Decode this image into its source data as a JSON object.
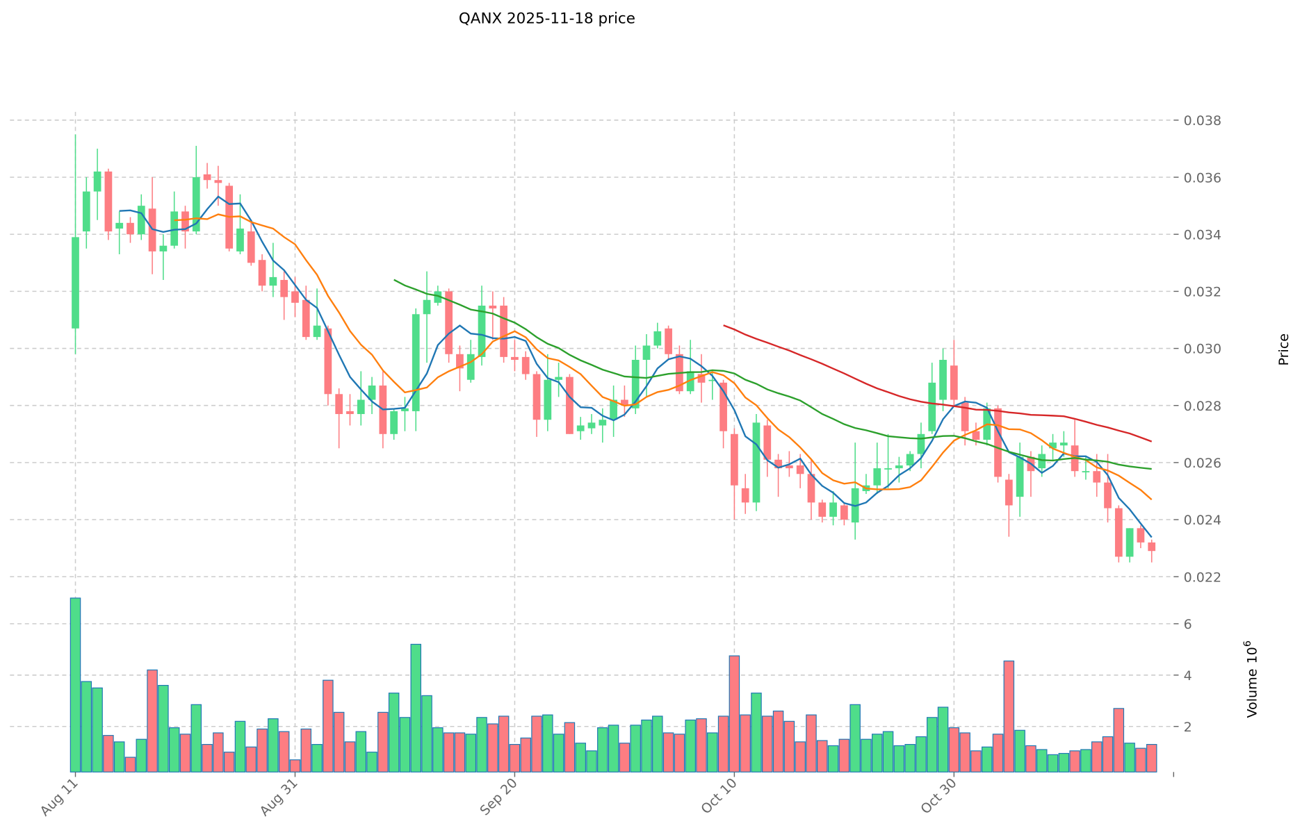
{
  "chart_data": {
    "type": "candlestick",
    "title": "QANX  2025-11-18  price",
    "ylabel": "Price",
    "volume_label": "Volume",
    "volume_exponent": "10",
    "volume_exponent_power": "6",
    "ylim": [
      0.0219,
      0.0383
    ],
    "volume_ylim": [
      0.23,
      6.9
    ],
    "price_ticks": [
      "0.022",
      "0.024",
      "0.026",
      "0.028",
      "0.030",
      "0.032",
      "0.034",
      "0.036",
      "0.038"
    ],
    "volume_ticks": [
      "2",
      "4",
      "6"
    ],
    "x_tick_labels": [
      {
        "index": 0,
        "label": "Aug 11"
      },
      {
        "index": 20,
        "label": "Aug 31"
      },
      {
        "index": 40,
        "label": "Sep 20"
      },
      {
        "index": 60,
        "label": "Oct 10"
      },
      {
        "index": 80,
        "label": "Oct 30"
      }
    ],
    "colors": {
      "up": "#4fdd8a",
      "down": "#fd7d82",
      "volume_edge": "#1f77b4"
    },
    "moving_averages": [
      {
        "window": 5,
        "color": "#1f77b4"
      },
      {
        "window": 10,
        "color": "#ff7f0e"
      },
      {
        "window": 30,
        "color": "#2ca02c"
      },
      {
        "window": 60,
        "color": "#d62728"
      }
    ],
    "candles": {
      "open": [
        0.0307,
        0.0341,
        0.0355,
        0.0362,
        0.0342,
        0.0344,
        0.034,
        0.0349,
        0.0334,
        0.0336,
        0.0348,
        0.0341,
        0.0361,
        0.0359,
        0.0357,
        0.0334,
        0.0341,
        0.0331,
        0.0322,
        0.0324,
        0.032,
        0.0317,
        0.0304,
        0.0307,
        0.0284,
        0.0278,
        0.0277,
        0.0282,
        0.0287,
        0.027,
        0.0278,
        0.0278,
        0.0312,
        0.0316,
        0.032,
        0.0298,
        0.0289,
        0.0297,
        0.0315,
        0.0315,
        0.0297,
        0.0297,
        0.0291,
        0.0275,
        0.0289,
        0.029,
        0.0271,
        0.0272,
        0.0273,
        0.0275,
        0.0282,
        0.0279,
        0.0296,
        0.0301,
        0.0307,
        0.0298,
        0.0285,
        0.0291,
        0.0289,
        0.0288,
        0.027,
        0.0251,
        0.0246,
        0.0273,
        0.0261,
        0.0259,
        0.0259,
        0.0256,
        0.0246,
        0.0241,
        0.0245,
        0.0239,
        0.025,
        0.0252,
        0.0258,
        0.0258,
        0.0259,
        0.0263,
        0.0271,
        0.0282,
        0.0294,
        0.0281,
        0.0271,
        0.0268,
        0.0279,
        0.0254,
        0.0248,
        0.0262,
        0.0258,
        0.0265,
        0.0266,
        0.0266,
        0.0257,
        0.0257,
        0.0253,
        0.0244,
        0.0227,
        0.0237,
        0.0232
      ],
      "high": [
        0.0375,
        0.036,
        0.037,
        0.0363,
        0.0348,
        0.0346,
        0.0354,
        0.036,
        0.034,
        0.0355,
        0.035,
        0.0371,
        0.0365,
        0.0364,
        0.0358,
        0.0354,
        0.0345,
        0.0333,
        0.0337,
        0.0327,
        0.0325,
        0.0322,
        0.0321,
        0.0308,
        0.0286,
        0.0284,
        0.0292,
        0.029,
        0.0292,
        0.0279,
        0.0283,
        0.0314,
        0.0327,
        0.0322,
        0.0321,
        0.0301,
        0.0303,
        0.0322,
        0.032,
        0.0318,
        0.0303,
        0.0299,
        0.0292,
        0.0298,
        0.0295,
        0.0291,
        0.0276,
        0.0277,
        0.0279,
        0.0287,
        0.0287,
        0.0301,
        0.0305,
        0.0309,
        0.0308,
        0.0301,
        0.0303,
        0.0298,
        0.0292,
        0.0289,
        0.0272,
        0.0256,
        0.0277,
        0.0275,
        0.0263,
        0.0264,
        0.0263,
        0.0261,
        0.0247,
        0.025,
        0.0246,
        0.0267,
        0.0256,
        0.0267,
        0.027,
        0.0262,
        0.0264,
        0.0274,
        0.0295,
        0.03,
        0.0303,
        0.0283,
        0.0274,
        0.0281,
        0.028,
        0.0256,
        0.0267,
        0.0264,
        0.0266,
        0.027,
        0.0271,
        0.0275,
        0.0262,
        0.0263,
        0.0263,
        0.0245,
        0.0237,
        0.0238,
        0.0233
      ],
      "low": [
        0.0298,
        0.0335,
        0.0345,
        0.0338,
        0.0333,
        0.0337,
        0.0338,
        0.0326,
        0.0324,
        0.0335,
        0.0335,
        0.034,
        0.0356,
        0.035,
        0.0334,
        0.0333,
        0.0329,
        0.032,
        0.0318,
        0.031,
        0.0311,
        0.0303,
        0.0303,
        0.028,
        0.0265,
        0.0273,
        0.0273,
        0.0277,
        0.0265,
        0.0268,
        0.0271,
        0.0271,
        0.0295,
        0.0315,
        0.0295,
        0.0285,
        0.0288,
        0.0294,
        0.0303,
        0.0295,
        0.0292,
        0.0289,
        0.0269,
        0.0271,
        0.0283,
        0.027,
        0.0268,
        0.027,
        0.0267,
        0.0269,
        0.0276,
        0.0277,
        0.0283,
        0.03,
        0.0296,
        0.0284,
        0.0284,
        0.0281,
        0.0282,
        0.0265,
        0.024,
        0.0242,
        0.0243,
        0.0255,
        0.0248,
        0.0255,
        0.0251,
        0.024,
        0.0239,
        0.0238,
        0.0238,
        0.0233,
        0.0249,
        0.0249,
        0.0251,
        0.0253,
        0.0257,
        0.0258,
        0.027,
        0.0278,
        0.028,
        0.0266,
        0.0266,
        0.0266,
        0.0253,
        0.0234,
        0.0241,
        0.0248,
        0.0255,
        0.0261,
        0.0262,
        0.0255,
        0.0254,
        0.0248,
        0.0239,
        0.0225,
        0.0225,
        0.023,
        0.0225
      ],
      "close": [
        0.0339,
        0.0355,
        0.0362,
        0.0341,
        0.0344,
        0.034,
        0.035,
        0.0334,
        0.0336,
        0.0348,
        0.0341,
        0.036,
        0.0359,
        0.0358,
        0.0335,
        0.0342,
        0.033,
        0.0322,
        0.0325,
        0.0318,
        0.0316,
        0.0304,
        0.0308,
        0.0284,
        0.0277,
        0.0277,
        0.0282,
        0.0287,
        0.027,
        0.0278,
        0.0279,
        0.0312,
        0.0317,
        0.032,
        0.0298,
        0.0293,
        0.0298,
        0.0315,
        0.0314,
        0.0297,
        0.0296,
        0.0291,
        0.0275,
        0.0289,
        0.029,
        0.027,
        0.0273,
        0.0274,
        0.0275,
        0.0282,
        0.028,
        0.0296,
        0.0301,
        0.0306,
        0.0298,
        0.0285,
        0.0292,
        0.0288,
        0.0289,
        0.0271,
        0.0252,
        0.0246,
        0.0274,
        0.0261,
        0.0258,
        0.0258,
        0.0256,
        0.0246,
        0.0241,
        0.0246,
        0.024,
        0.0251,
        0.0252,
        0.0258,
        0.0258,
        0.0259,
        0.0263,
        0.027,
        0.0288,
        0.0296,
        0.0282,
        0.0271,
        0.0268,
        0.0279,
        0.0255,
        0.0245,
        0.0262,
        0.0257,
        0.0263,
        0.0267,
        0.0267,
        0.0257,
        0.0257,
        0.0253,
        0.0244,
        0.0227,
        0.0237,
        0.0232,
        0.0229
      ],
      "volume": [
        7.0,
        3.75,
        3.5,
        1.65,
        1.4,
        0.8,
        1.5,
        4.2,
        3.6,
        1.95,
        1.7,
        2.85,
        1.3,
        1.75,
        1.0,
        2.2,
        1.2,
        1.9,
        2.3,
        1.8,
        0.7,
        1.9,
        1.3,
        3.8,
        2.55,
        1.4,
        1.8,
        1.0,
        2.55,
        3.3,
        2.35,
        5.2,
        3.2,
        1.95,
        1.75,
        1.75,
        1.7,
        2.35,
        2.1,
        2.4,
        1.3,
        1.55,
        2.4,
        2.45,
        1.7,
        2.15,
        1.35,
        1.05,
        1.95,
        2.05,
        1.35,
        2.05,
        2.25,
        2.4,
        1.75,
        1.7,
        2.25,
        2.3,
        1.75,
        2.4,
        4.75,
        2.45,
        3.3,
        2.4,
        2.6,
        2.2,
        1.4,
        2.45,
        1.45,
        1.25,
        1.5,
        2.85,
        1.5,
        1.7,
        1.8,
        1.25,
        1.3,
        1.6,
        2.35,
        2.75,
        1.95,
        1.75,
        1.05,
        1.2,
        1.7,
        4.55,
        1.85,
        1.25,
        1.1,
        0.9,
        0.95,
        1.05,
        1.1,
        1.4,
        1.6,
        2.7,
        1.35,
        1.15,
        1.3
      ]
    }
  }
}
